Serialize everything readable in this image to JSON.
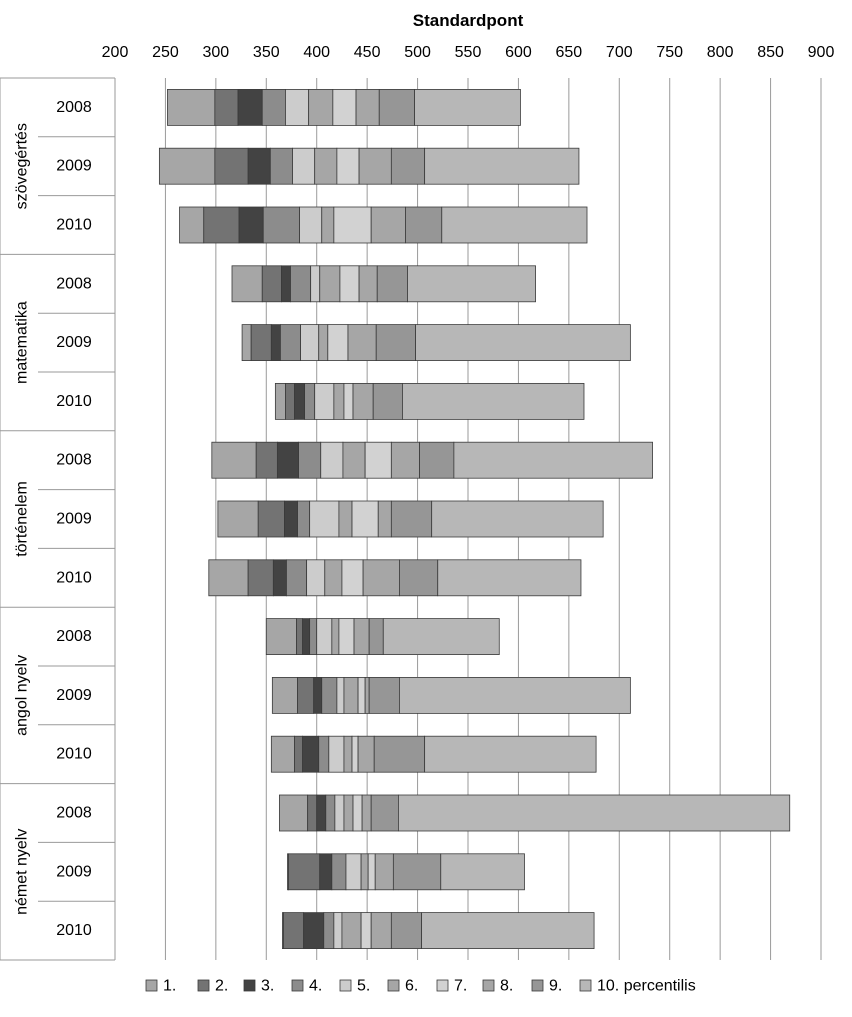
{
  "chart_data": {
    "type": "bar",
    "orientation": "horizontal-stacked-ranges",
    "title": "Standardpont",
    "x_axis": {
      "label": "Standardpont",
      "position": "top",
      "min": 200,
      "max": 900,
      "ticks": [
        200,
        250,
        300,
        350,
        400,
        450,
        500,
        550,
        600,
        650,
        700,
        750,
        800,
        850,
        900
      ],
      "grid": true
    },
    "legend": {
      "placement": "bottom",
      "entries": [
        "1.",
        "2.",
        "3.",
        "4.",
        "5.",
        "6.",
        "7.",
        "8.",
        "9.",
        "10. percentilis"
      ]
    },
    "series_colors": [
      "#a6a6a6",
      "#737373",
      "#434343",
      "#8c8c8c",
      "#cccccc",
      "#a6a6a6",
      "#d2d2d2",
      "#a6a6a6",
      "#969696",
      "#b7b7b7"
    ],
    "groups": [
      {
        "name": "szövegértés",
        "rows": [
          {
            "year": "2008",
            "bounds": [
              252,
              299,
              322,
              346,
              369,
              392,
              416,
              439,
              462,
              497,
              602
            ]
          },
          {
            "year": "2009",
            "bounds": [
              244,
              299,
              332,
              354,
              376,
              398,
              420,
              442,
              474,
              507,
              660
            ]
          },
          {
            "year": "2010",
            "bounds": [
              264,
              288,
              323,
              347,
              383,
              405,
              417,
              454,
              488,
              524,
              668
            ]
          }
        ]
      },
      {
        "name": "matematika",
        "rows": [
          {
            "year": "2008",
            "bounds": [
              316,
              346,
              365,
              374,
              394,
              403,
              423,
              442,
              460,
              490,
              617
            ]
          },
          {
            "year": "2009",
            "bounds": [
              326,
              335,
              355,
              364,
              384,
              402,
              411,
              431,
              459,
              498,
              711
            ]
          },
          {
            "year": "2010",
            "bounds": [
              359,
              369,
              378,
              388,
              398,
              417,
              427,
              436,
              456,
              485,
              665
            ]
          }
        ]
      },
      {
        "name": "történelem",
        "rows": [
          {
            "year": "2008",
            "bounds": [
              296,
              340,
              361,
              382,
              404,
              426,
              448,
              474,
              502,
              536,
              733
            ]
          },
          {
            "year": "2009",
            "bounds": [
              302,
              342,
              368,
              381,
              393,
              422,
              435,
              461,
              474,
              514,
              684
            ]
          },
          {
            "year": "2010",
            "bounds": [
              293,
              332,
              357,
              370,
              390,
              408,
              425,
              446,
              482,
              520,
              662
            ]
          }
        ]
      },
      {
        "name": "angol nyelv",
        "rows": [
          {
            "year": "2008",
            "bounds": [
              350,
              380,
              386,
              393,
              400,
              415,
              422,
              437,
              452,
              466,
              581
            ]
          },
          {
            "year": "2009",
            "bounds": [
              356,
              381,
              397,
              405,
              420,
              427,
              441,
              448,
              452,
              482,
              711
            ]
          },
          {
            "year": "2010",
            "bounds": [
              355,
              378,
              386,
              402,
              412,
              427,
              435,
              441,
              457,
              507,
              677
            ]
          }
        ]
      },
      {
        "name": "német nyelv",
        "rows": [
          {
            "year": "2008",
            "bounds": [
              363,
              391,
              400,
              409,
              418,
              427,
              436,
              445,
              454,
              481,
              869
            ]
          },
          {
            "year": "2009",
            "bounds": [
              371,
              372,
              403,
              415,
              429,
              444,
              451,
              458,
              476,
              523,
              606
            ]
          },
          {
            "year": "2010",
            "bounds": [
              366,
              367,
              387,
              407,
              417,
              425,
              444,
              454,
              474,
              504,
              675
            ]
          }
        ]
      }
    ]
  }
}
